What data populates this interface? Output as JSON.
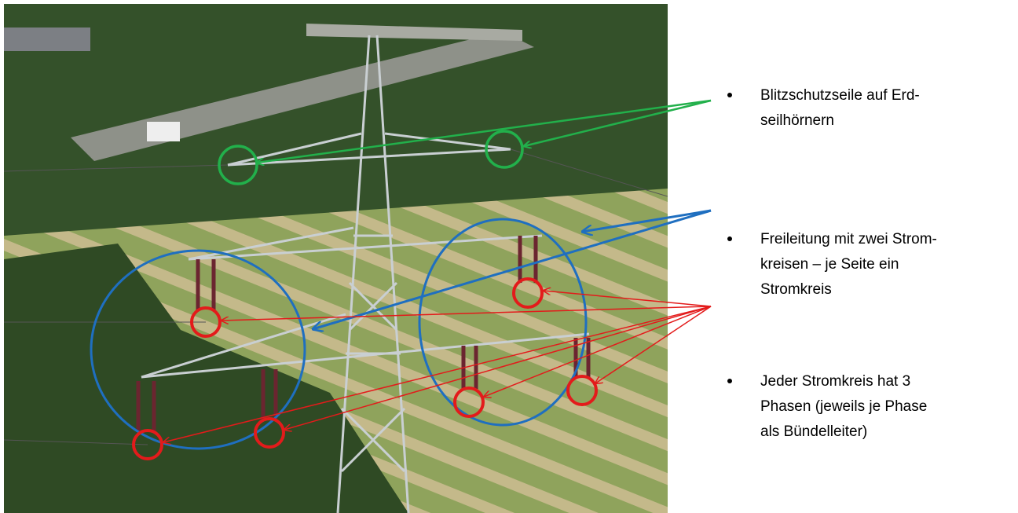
{
  "bullets": [
    {
      "lines": [
        "Blitzschutzseile auf Erd-",
        "seilhörnern"
      ]
    },
    {
      "lines": [
        "Freileitung mit zwei Strom-",
        "kreisen – je Seite ein",
        "Stromkreis"
      ]
    },
    {
      "lines": [
        "Jeder Stromkreis hat 3",
        "Phasen (jeweils je Phase",
        "als Bündelleiter)"
      ]
    }
  ]
}
